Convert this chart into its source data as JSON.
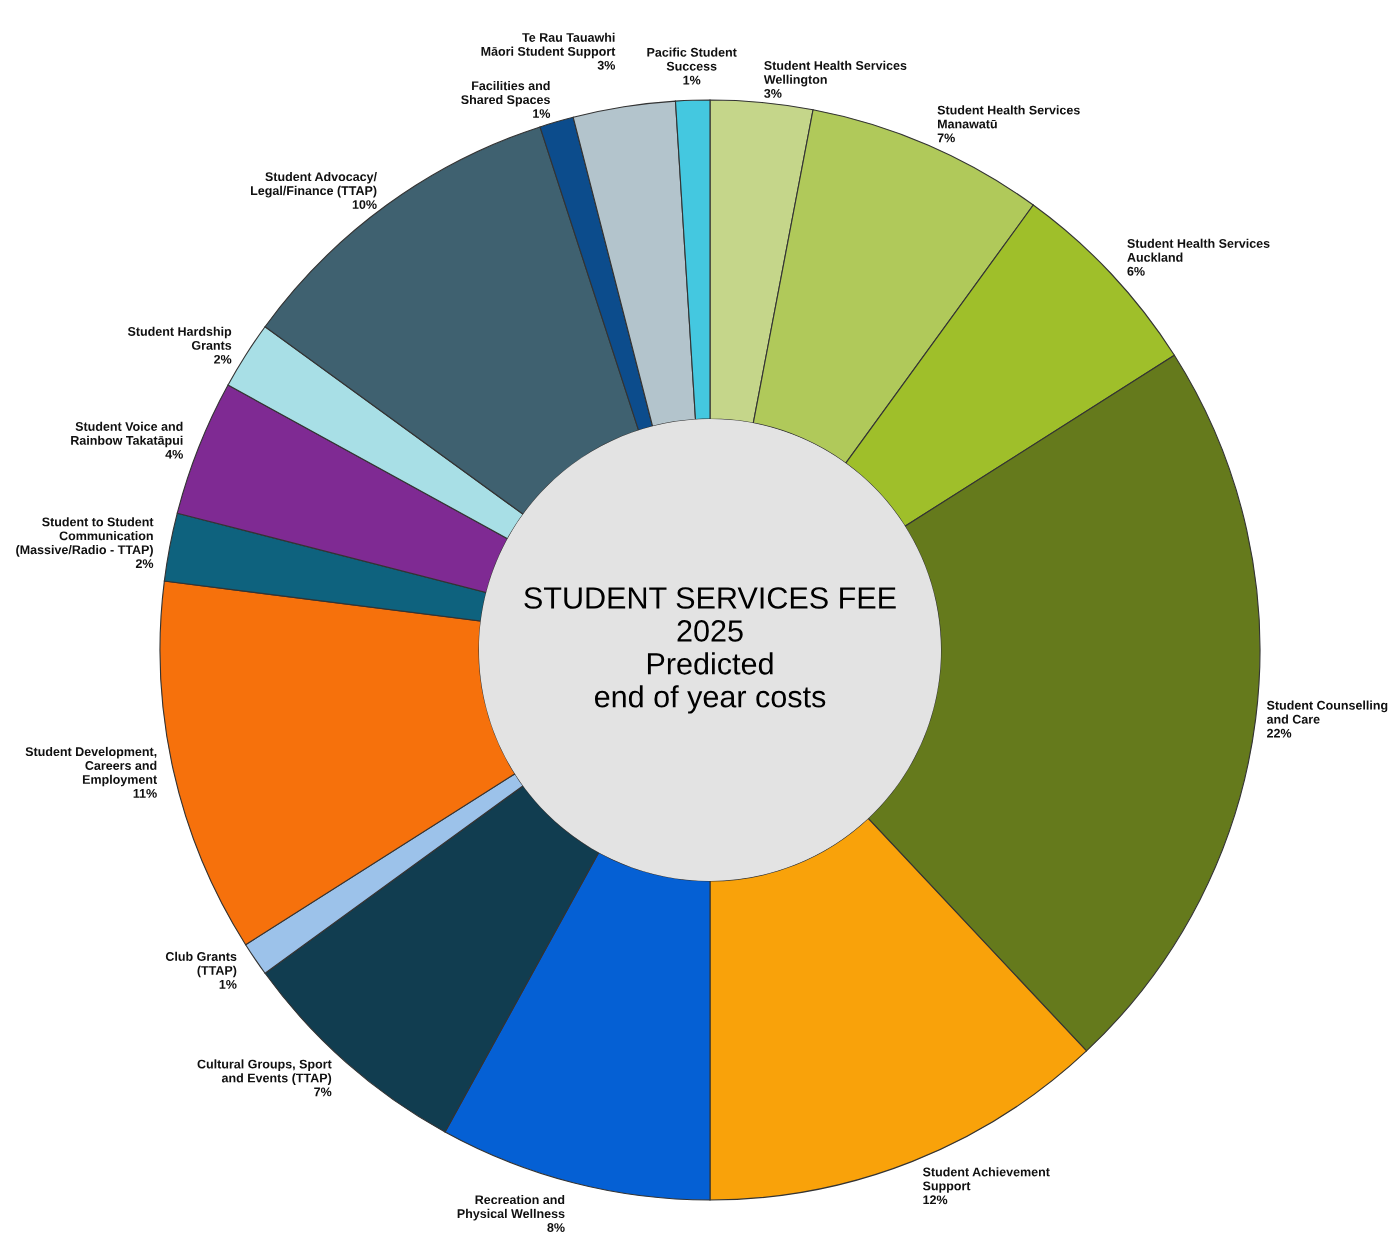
{
  "chart_data": {
    "type": "donut",
    "title": "STUDENT SERVICES FEE\n2025\nPredicted\nend of year costs",
    "categories": [
      "Student Health Services\nWellington",
      "Student Health Services\nManawatū",
      "Student Health Services\nAuckland",
      "Student Counselling\nand Care",
      "Student Achievement\nSupport",
      "Recreation and\nPhysical Wellness",
      "Cultural Groups, Sport\nand Events (TTAP)",
      "Club Grants\n(TTAP)",
      "Student Development,\nCareers and\nEmployment",
      "Student to Student\nCommunication\n(Massive/Radio - TTAP)",
      "Student Voice and\nRainbow Takatāpui",
      "Student Hardship\nGrants",
      "Student Advocacy/\nLegal/Finance (TTAP)",
      "Facilities and\nShared Spaces",
      "Te Rau Tauawhi\nMāori Student Support",
      "Pacific Student\nSuccess"
    ],
    "values": [
      3,
      7,
      6,
      22,
      12,
      8,
      7,
      1,
      11,
      2,
      4,
      2,
      10,
      1,
      3,
      1
    ],
    "value_labels": [
      "3%",
      "7%",
      "6%",
      "22%",
      "12%",
      "8%",
      "7%",
      "1%",
      "11%",
      "2%",
      "4%",
      "2%",
      "10%",
      "1%",
      "3%",
      "1%"
    ],
    "colors": [
      "#c5d68a",
      "#b0c95a",
      "#9fbf2a",
      "#657a1c",
      "#f9a20a",
      "#0560d4",
      "#113d50",
      "#9cc2ea",
      "#f6710c",
      "#0e627e",
      "#7f2a93",
      "#a8dfe6",
      "#3f6170",
      "#0c4c8c",
      "#b3c4cc",
      "#44c8e0"
    ],
    "legend": false
  }
}
